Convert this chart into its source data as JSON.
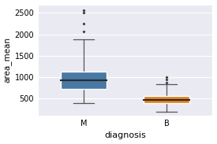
{
  "title": "",
  "xlabel": "diagnosis",
  "ylabel": "area_mean",
  "categories": [
    "M",
    "B"
  ],
  "box_colors": [
    "#4878a4",
    "#de8020"
  ],
  "M": {
    "whisker_low": 400,
    "q1": 730,
    "median": 930,
    "q3": 1130,
    "whisker_high": 1880,
    "outliers": [
      2060,
      2250,
      2500,
      2570
    ]
  },
  "B": {
    "whisker_low": 195,
    "q1": 400,
    "median": 460,
    "q3": 560,
    "whisker_high": 830,
    "outliers": [
      880,
      940,
      1010
    ]
  },
  "ylim": [
    100,
    2700
  ],
  "yticks": [
    500,
    1000,
    1500,
    2000,
    2500
  ],
  "figsize": [
    2.75,
    1.83
  ],
  "dpi": 100,
  "bg_color": "#eaeaf2",
  "grid_color": "white",
  "spine_color": "white",
  "box_edge_color": "white",
  "median_color": "#2a2a2a",
  "whisker_color": "#555555",
  "flier_color": "#333333"
}
